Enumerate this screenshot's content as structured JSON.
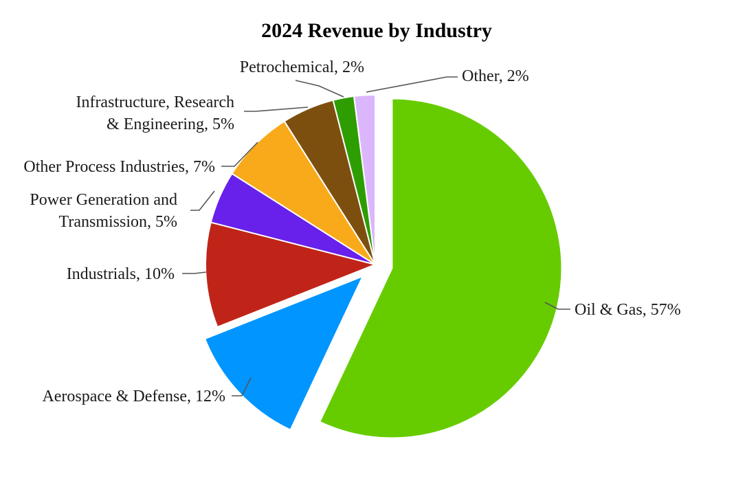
{
  "chart_data": {
    "type": "pie",
    "title": "2024 Revenue by Industry",
    "slices": [
      {
        "name": "Oil & Gas",
        "value": 57,
        "label": "Oil & Gas, 57%",
        "color": "#66CC00",
        "exploded": true
      },
      {
        "name": "Aerospace & Defense",
        "value": 12,
        "label": "Aerospace & Defense, 12%",
        "color": "#0095FF",
        "exploded": true
      },
      {
        "name": "Industrials",
        "value": 10,
        "label": "Industrials, 10%",
        "color": "#C02418",
        "exploded": false
      },
      {
        "name": "Power Generation and Transmission",
        "value": 5,
        "label": "Power Generation and Transmission, 5%",
        "color": "#6820EB",
        "exploded": false
      },
      {
        "name": "Other Process Industries",
        "value": 7,
        "label": "Other Process Industries, 7%",
        "color": "#F9AA1A",
        "exploded": false
      },
      {
        "name": "Infrastructure, Research & Engineering",
        "value": 5,
        "label": "Infrastructure, Research & Engineering, 5%",
        "color": "#7D4F0F",
        "exploded": false
      },
      {
        "name": "Petrochemical",
        "value": 2,
        "label": "Petrochemical, 2%",
        "color": "#2E9D02",
        "exploded": false
      },
      {
        "name": "Other",
        "value": 2,
        "label": "Other, 2%",
        "color": "#DCB6FC",
        "exploded": false
      }
    ]
  }
}
